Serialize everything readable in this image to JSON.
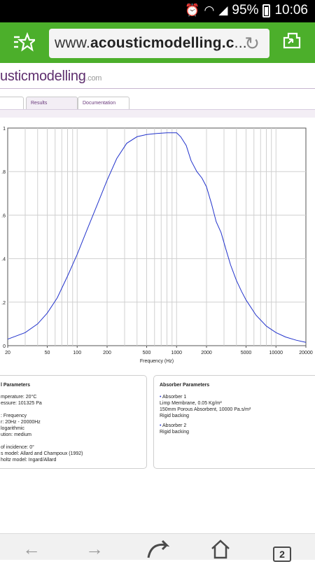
{
  "status_bar": {
    "battery": "95%",
    "time": "10:06"
  },
  "browser": {
    "url_prefix": "www.",
    "url_domain": "acousticmodelling.c",
    "url_suffix": "...",
    "tab_count": "2"
  },
  "site": {
    "logo_text_a": "usticmodelling",
    "logo_text_b": ".com",
    "tabs": [
      "",
      "Results",
      "Documentation"
    ]
  },
  "chart_data": {
    "type": "line",
    "xlabel": "Frequency (Hz)",
    "ylabel": "",
    "xscale": "log",
    "xlim": [
      20,
      20000
    ],
    "ylim": [
      0,
      1
    ],
    "grid": true,
    "x_tick_labels": [
      "20",
      "50",
      "100",
      "200",
      "500",
      "1000",
      "2000",
      "5000",
      "10000",
      "20000"
    ],
    "y_tick_labels": [
      "0",
      ".2",
      ".4",
      ".6",
      ".8",
      "1"
    ],
    "series": [
      {
        "color": "#2233cc",
        "x": [
          20,
          30,
          40,
          50,
          63,
          80,
          100,
          125,
          160,
          200,
          250,
          315,
          400,
          500,
          630,
          800,
          1000,
          1100,
          1250,
          1400,
          1600,
          1800,
          2000,
          2250,
          2500,
          2800,
          3150,
          3500,
          4000,
          4500,
          5000,
          6300,
          8000,
          10000,
          12500,
          16000,
          20000
        ],
        "y": [
          0.03,
          0.06,
          0.1,
          0.15,
          0.22,
          0.32,
          0.42,
          0.53,
          0.65,
          0.76,
          0.86,
          0.93,
          0.96,
          0.97,
          0.975,
          0.978,
          0.978,
          0.96,
          0.92,
          0.85,
          0.8,
          0.77,
          0.73,
          0.65,
          0.57,
          0.52,
          0.44,
          0.37,
          0.3,
          0.25,
          0.21,
          0.14,
          0.09,
          0.06,
          0.04,
          0.025,
          0.015
        ]
      }
    ]
  },
  "params": {
    "left_title": "l Parameters",
    "left_lines": [
      "mperature: 20°C",
      "essure: 101325 Pa",
      "",
      ": Frequency",
      "r: 20Hz - 20000Hz",
      " logarithmic",
      "ution: medium",
      "",
      "of incidence: 0°",
      "s model: Allard and Champoux (1992)",
      "holtz model: Ingard/Allard"
    ],
    "right_title": "Absorber Parameters",
    "absorber1_label": "Absorber 1",
    "absorber1_line1": "Limp Membrane, 0.05 Kg/m²",
    "absorber1_line2": "150mm Porous Absorbent, 10000 Pa.s/m²",
    "absorber1_line3": "Rigid backing",
    "absorber2_label": "Absorber 2",
    "absorber2_line1": "Rigid backing"
  }
}
